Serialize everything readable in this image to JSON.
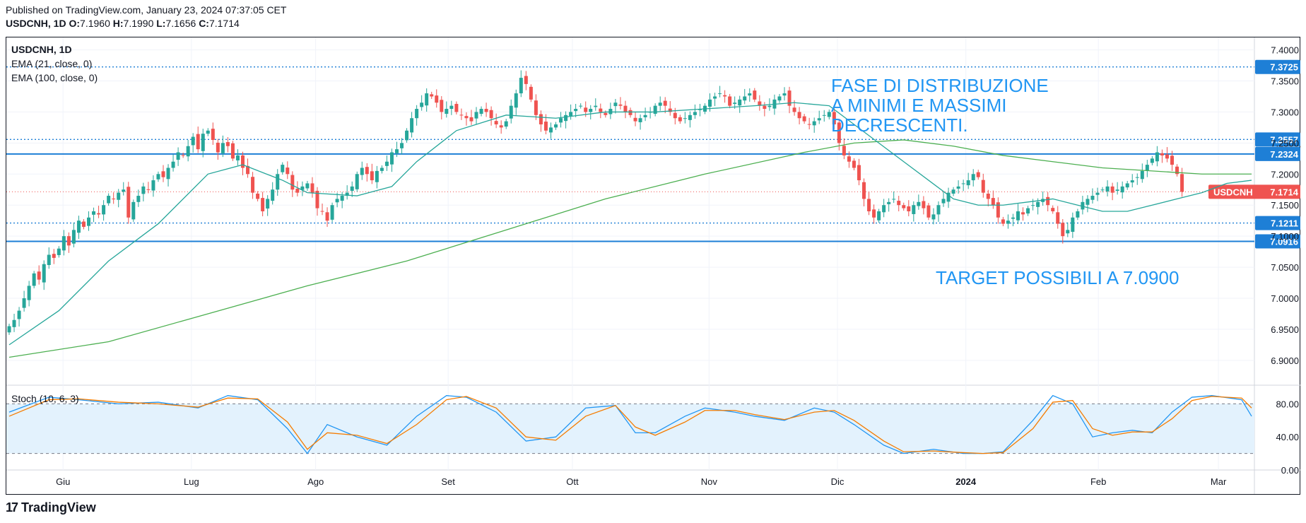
{
  "header": {
    "published": "Published on TradingView.com, January 23, 2024 07:37:05 CET",
    "symbol": "USDCNH, 1D",
    "o_label": "O:",
    "o_value": "7.1960",
    "h_label": "H:",
    "h_value": "7.1990",
    "l_label": "L:",
    "l_value": "7.1656",
    "c_label": "C:",
    "c_value": "7.1714"
  },
  "legend": {
    "symbol": "USDCNH, 1D",
    "ema21": "EMA (21, close, 0)",
    "ema100": "EMA (100, close, 0)",
    "stoch": "Stoch (10, 6, 3)"
  },
  "annotations": {
    "distribution_line1": "FASE DI DISTRIBUZIONE",
    "distribution_line2": "A MINIMI E MASSIMI",
    "distribution_line3": "DECRESCENTI.",
    "target": "TARGET POSSIBILI A 7.0900"
  },
  "footer": {
    "brand": "TradingView"
  },
  "colors": {
    "up": "#26a69a",
    "down": "#ef5350",
    "ema21": "#26a69a",
    "ema100": "#4caf50",
    "level": "#1e7fd6",
    "annotation": "#2196f3",
    "stoch_k": "#2196f3",
    "stoch_d": "#f57c00",
    "stoch_band": "#e3f2fd"
  },
  "chart_data": {
    "type": "candlestick",
    "ylim": [
      6.86,
      7.42
    ],
    "yticks": [
      "7.4000",
      "7.3500",
      "7.3000",
      "7.2500",
      "7.2000",
      "7.1500",
      "7.1000",
      "7.0500",
      "7.0000",
      "6.9500",
      "6.9000"
    ],
    "ytick_values": [
      7.4,
      7.35,
      7.3,
      7.25,
      7.2,
      7.15,
      7.1,
      7.05,
      7.0,
      6.95,
      6.9
    ],
    "x_labels": [
      "Giu",
      "Lug",
      "Ago",
      "Set",
      "Ott",
      "Nov",
      "Dic",
      "2024",
      "Feb",
      "Mar"
    ],
    "x_label_day_index": [
      13,
      44,
      74,
      106,
      136,
      169,
      200,
      231,
      263,
      292
    ],
    "levels": [
      {
        "value": 7.3725,
        "label": "7.3725",
        "style": "dotted"
      },
      {
        "value": 7.2557,
        "label": "7.2557",
        "style": "dotted"
      },
      {
        "value": 7.2324,
        "label": "7.2324",
        "style": "solid"
      },
      {
        "value": 7.1211,
        "label": "7.1211",
        "style": "dotted"
      },
      {
        "value": 7.0916,
        "label": "7.0916",
        "style": "solid"
      }
    ],
    "last_price": {
      "symbol": "USDCNH",
      "value": 7.1714,
      "label": "7.1714"
    },
    "closes": [
      6.955,
      6.965,
      6.98,
      7.0,
      7.02,
      7.04,
      7.03,
      7.055,
      7.07,
      7.065,
      7.08,
      7.1,
      7.085,
      7.11,
      7.125,
      7.115,
      7.13,
      7.14,
      7.135,
      7.15,
      7.165,
      7.16,
      7.17,
      7.175,
      7.13,
      7.155,
      7.165,
      7.18,
      7.175,
      7.19,
      7.2,
      7.195,
      7.21,
      7.22,
      7.235,
      7.23,
      7.245,
      7.26,
      7.24,
      7.265,
      7.27,
      7.255,
      7.235,
      7.25,
      7.245,
      7.225,
      7.23,
      7.21,
      7.2,
      7.17,
      7.16,
      7.14,
      7.16,
      7.175,
      7.2,
      7.215,
      7.2,
      7.175,
      7.17,
      7.18,
      7.185,
      7.17,
      7.145,
      7.14,
      7.125,
      7.15,
      7.16,
      7.165,
      7.17,
      7.18,
      7.2,
      7.21,
      7.2,
      7.19,
      7.205,
      7.21,
      7.22,
      7.235,
      7.24,
      7.25,
      7.27,
      7.29,
      7.305,
      7.315,
      7.33,
      7.325,
      7.315,
      7.3,
      7.305,
      7.31,
      7.3,
      7.295,
      7.29,
      7.285,
      7.3,
      7.305,
      7.3,
      7.29,
      7.28,
      7.275,
      7.285,
      7.31,
      7.33,
      7.355,
      7.345,
      7.32,
      7.295,
      7.28,
      7.27,
      7.275,
      7.28,
      7.29,
      7.295,
      7.3,
      7.305,
      7.31,
      7.3,
      7.305,
      7.31,
      7.3,
      7.295,
      7.305,
      7.315,
      7.31,
      7.3,
      7.295,
      7.285,
      7.29,
      7.295,
      7.3,
      7.31,
      7.315,
      7.31,
      7.3,
      7.29,
      7.285,
      7.29,
      7.295,
      7.3,
      7.305,
      7.31,
      7.32,
      7.325,
      7.33,
      7.325,
      7.31,
      7.315,
      7.32,
      7.325,
      7.33,
      7.32,
      7.31,
      7.305,
      7.31,
      7.32,
      7.325,
      7.33,
      7.31,
      7.3,
      7.29,
      7.285,
      7.28,
      7.285,
      7.29,
      7.295,
      7.3,
      7.28,
      7.25,
      7.23,
      7.22,
      7.21,
      7.19,
      7.16,
      7.14,
      7.13,
      7.14,
      7.15,
      7.155,
      7.16,
      7.15,
      7.145,
      7.14,
      7.15,
      7.155,
      7.145,
      7.13,
      7.135,
      7.15,
      7.16,
      7.17,
      7.175,
      7.18,
      7.185,
      7.19,
      7.2,
      7.195,
      7.17,
      7.16,
      7.15,
      7.13,
      7.12,
      7.125,
      7.13,
      7.14,
      7.135,
      7.145,
      7.15,
      7.155,
      7.16,
      7.15,
      7.14,
      7.12,
      7.1,
      7.11,
      7.13,
      7.14,
      7.155,
      7.16,
      7.165,
      7.17,
      7.175,
      7.18,
      7.17,
      7.175,
      7.18,
      7.185,
      7.19,
      7.195,
      7.205,
      7.215,
      7.225,
      7.235,
      7.23,
      7.225,
      7.215,
      7.2,
      7.1714
    ],
    "ema21": {
      "x": [
        0,
        10,
        20,
        30,
        40,
        47,
        55,
        60,
        70,
        77,
        82,
        90,
        100,
        110,
        120,
        130,
        140,
        150,
        158,
        165,
        170,
        175,
        180,
        185,
        190,
        195,
        200,
        205,
        210,
        215,
        220,
        225,
        230,
        235,
        240,
        245,
        250
      ],
      "y": [
        6.925,
        6.98,
        7.06,
        7.12,
        7.2,
        7.215,
        7.19,
        7.17,
        7.165,
        7.18,
        7.22,
        7.27,
        7.295,
        7.29,
        7.3,
        7.3,
        7.305,
        7.31,
        7.315,
        7.31,
        7.28,
        7.25,
        7.22,
        7.19,
        7.16,
        7.15,
        7.15,
        7.155,
        7.16,
        7.15,
        7.14,
        7.14,
        7.15,
        7.16,
        7.17,
        7.185,
        7.19
      ]
    },
    "ema100": {
      "x": [
        0,
        20,
        40,
        60,
        80,
        100,
        120,
        140,
        160,
        170,
        180,
        190,
        200,
        210,
        220,
        230,
        240,
        250
      ],
      "y": [
        6.905,
        6.93,
        6.975,
        7.02,
        7.06,
        7.11,
        7.16,
        7.2,
        7.235,
        7.25,
        7.255,
        7.245,
        7.23,
        7.22,
        7.21,
        7.205,
        7.2,
        7.2
      ]
    },
    "stoch": {
      "ylim": [
        0,
        100
      ],
      "yticks": [
        "80.00",
        "40.00",
        "0.00"
      ],
      "ytick_values": [
        80,
        40,
        0
      ],
      "bands": [
        80,
        20
      ],
      "x": [
        0,
        8,
        14,
        22,
        30,
        38,
        44,
        50,
        56,
        60,
        64,
        70,
        76,
        82,
        88,
        92,
        98,
        104,
        110,
        116,
        122,
        126,
        130,
        136,
        140,
        146,
        150,
        156,
        162,
        166,
        170,
        176,
        180,
        186,
        192,
        196,
        200,
        206,
        210,
        214,
        218,
        222,
        226,
        230,
        234,
        238,
        242,
        248,
        250
      ],
      "k": [
        70,
        88,
        85,
        80,
        82,
        75,
        90,
        85,
        50,
        20,
        55,
        40,
        30,
        65,
        90,
        88,
        70,
        35,
        40,
        75,
        78,
        45,
        45,
        65,
        75,
        70,
        65,
        60,
        75,
        70,
        55,
        30,
        20,
        25,
        20,
        20,
        22,
        60,
        90,
        80,
        40,
        45,
        48,
        45,
        70,
        88,
        90,
        85,
        65
      ],
      "d": [
        65,
        85,
        86,
        82,
        80,
        76,
        87,
        86,
        58,
        25,
        45,
        42,
        32,
        55,
        85,
        89,
        75,
        40,
        36,
        65,
        78,
        52,
        42,
        58,
        72,
        72,
        67,
        61,
        70,
        72,
        60,
        35,
        22,
        23,
        21,
        20,
        21,
        50,
        82,
        84,
        50,
        42,
        46,
        46,
        62,
        84,
        89,
        87,
        75
      ]
    }
  }
}
